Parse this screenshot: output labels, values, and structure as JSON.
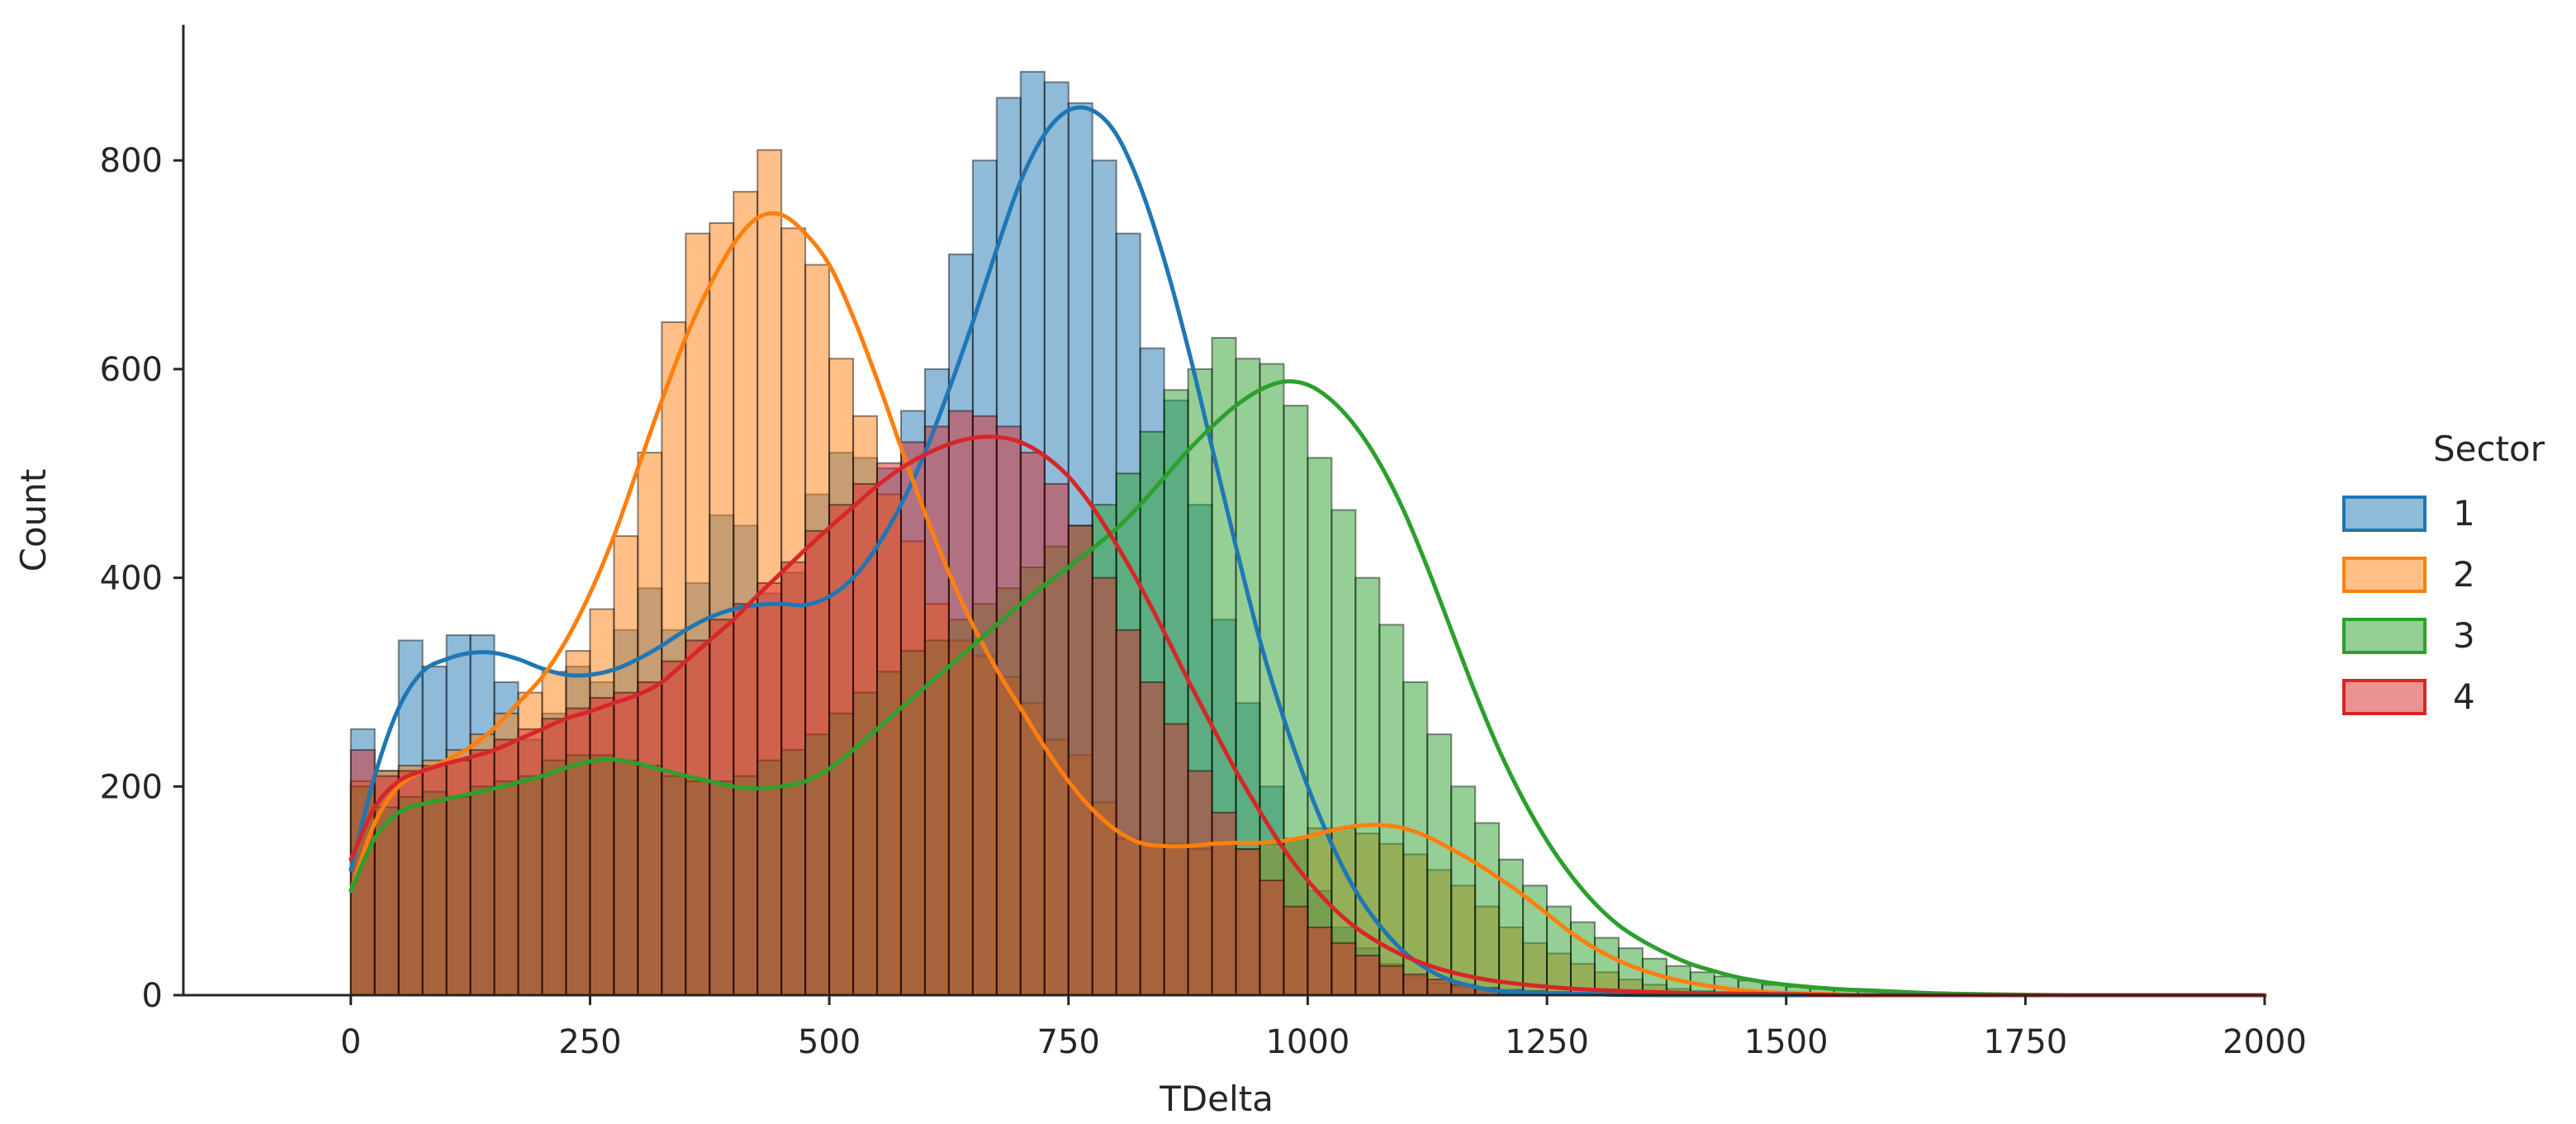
{
  "chart_data": {
    "type": "histogram",
    "xlabel": "TDelta",
    "ylabel": "Count",
    "xlim": [
      -175,
      2000
    ],
    "ylim": [
      0,
      930
    ],
    "x_ticks": [
      0,
      250,
      500,
      750,
      1000,
      1250,
      1500,
      1750,
      2000
    ],
    "y_ticks": [
      0,
      200,
      400,
      600,
      800
    ],
    "bin_width": 25,
    "bin_start": 0,
    "grid": false,
    "legend": {
      "title": "Sector",
      "placement": "right"
    },
    "series": [
      {
        "name": "1",
        "color": "#1f77b4",
        "counts": [
          255,
          215,
          340,
          315,
          345,
          345,
          300,
          245,
          270,
          315,
          300,
          350,
          390,
          350,
          395,
          460,
          450,
          385,
          405,
          480,
          520,
          515,
          505,
          560,
          600,
          710,
          800,
          860,
          885,
          875,
          855,
          800,
          730,
          620,
          570,
          470,
          360,
          280,
          200,
          150,
          100,
          65,
          45,
          30,
          18,
          12,
          8,
          6,
          4,
          3,
          2,
          2,
          2,
          1,
          1,
          1,
          1,
          0,
          0,
          0,
          0,
          0,
          0,
          0,
          0,
          0,
          0,
          0,
          0,
          0,
          0,
          0,
          0,
          0,
          0,
          0,
          0,
          0,
          0,
          0
        ],
        "kde": [
          [
            0,
            120
          ],
          [
            25,
            210
          ],
          [
            50,
            275
          ],
          [
            75,
            310
          ],
          [
            100,
            322
          ],
          [
            125,
            328
          ],
          [
            150,
            328
          ],
          [
            175,
            322
          ],
          [
            200,
            313
          ],
          [
            225,
            307
          ],
          [
            250,
            307
          ],
          [
            275,
            312
          ],
          [
            300,
            322
          ],
          [
            325,
            335
          ],
          [
            350,
            350
          ],
          [
            375,
            362
          ],
          [
            400,
            370
          ],
          [
            425,
            374
          ],
          [
            450,
            375
          ],
          [
            475,
            374
          ],
          [
            500,
            382
          ],
          [
            525,
            400
          ],
          [
            550,
            430
          ],
          [
            575,
            470
          ],
          [
            600,
            520
          ],
          [
            625,
            580
          ],
          [
            650,
            645
          ],
          [
            675,
            715
          ],
          [
            700,
            780
          ],
          [
            725,
            825
          ],
          [
            750,
            848
          ],
          [
            775,
            848
          ],
          [
            800,
            825
          ],
          [
            825,
            775
          ],
          [
            850,
            705
          ],
          [
            875,
            620
          ],
          [
            900,
            525
          ],
          [
            925,
            430
          ],
          [
            950,
            340
          ],
          [
            975,
            265
          ],
          [
            1000,
            200
          ],
          [
            1025,
            145
          ],
          [
            1050,
            100
          ],
          [
            1075,
            67
          ],
          [
            1100,
            42
          ],
          [
            1125,
            25
          ],
          [
            1150,
            14
          ],
          [
            1175,
            8
          ],
          [
            1200,
            4
          ],
          [
            1250,
            2
          ],
          [
            1300,
            1
          ],
          [
            1400,
            0
          ],
          [
            2000,
            0
          ]
        ]
      },
      {
        "name": "2",
        "color": "#ff7f0e",
        "counts": [
          205,
          215,
          220,
          225,
          235,
          250,
          270,
          290,
          310,
          330,
          370,
          440,
          520,
          645,
          730,
          740,
          770,
          810,
          735,
          700,
          610,
          555,
          480,
          435,
          375,
          340,
          325,
          305,
          280,
          245,
          230,
          185,
          150,
          145,
          145,
          140,
          145,
          140,
          145,
          150,
          160,
          160,
          155,
          145,
          135,
          120,
          105,
          85,
          65,
          50,
          40,
          30,
          22,
          15,
          10,
          6,
          4,
          3,
          2,
          1,
          1,
          0,
          0,
          0,
          0,
          0,
          0,
          0,
          0,
          0,
          0,
          0,
          0,
          0,
          0,
          0,
          0,
          0,
          0,
          0
        ],
        "kde": [
          [
            0,
            100
          ],
          [
            25,
            165
          ],
          [
            50,
            200
          ],
          [
            75,
            215
          ],
          [
            100,
            225
          ],
          [
            125,
            238
          ],
          [
            150,
            256
          ],
          [
            175,
            280
          ],
          [
            200,
            305
          ],
          [
            225,
            340
          ],
          [
            250,
            385
          ],
          [
            275,
            440
          ],
          [
            300,
            505
          ],
          [
            325,
            570
          ],
          [
            350,
            630
          ],
          [
            375,
            680
          ],
          [
            400,
            720
          ],
          [
            425,
            745
          ],
          [
            450,
            748
          ],
          [
            475,
            730
          ],
          [
            500,
            700
          ],
          [
            525,
            650
          ],
          [
            550,
            590
          ],
          [
            575,
            525
          ],
          [
            600,
            462
          ],
          [
            625,
            405
          ],
          [
            650,
            355
          ],
          [
            675,
            312
          ],
          [
            700,
            275
          ],
          [
            725,
            238
          ],
          [
            750,
            205
          ],
          [
            775,
            178
          ],
          [
            800,
            158
          ],
          [
            825,
            146
          ],
          [
            850,
            143
          ],
          [
            875,
            143
          ],
          [
            900,
            145
          ],
          [
            925,
            146
          ],
          [
            950,
            146
          ],
          [
            975,
            148
          ],
          [
            1000,
            152
          ],
          [
            1025,
            158
          ],
          [
            1050,
            162
          ],
          [
            1075,
            163
          ],
          [
            1100,
            160
          ],
          [
            1125,
            152
          ],
          [
            1150,
            140
          ],
          [
            1175,
            127
          ],
          [
            1200,
            112
          ],
          [
            1225,
            96
          ],
          [
            1250,
            78
          ],
          [
            1275,
            60
          ],
          [
            1300,
            45
          ],
          [
            1325,
            33
          ],
          [
            1350,
            24
          ],
          [
            1375,
            17
          ],
          [
            1400,
            12
          ],
          [
            1425,
            8
          ],
          [
            1450,
            5
          ],
          [
            1500,
            2
          ],
          [
            1550,
            1
          ],
          [
            1600,
            0
          ],
          [
            2000,
            0
          ]
        ]
      },
      {
        "name": "3",
        "color": "#2ca02c",
        "counts": [
          200,
          180,
          190,
          195,
          190,
          200,
          205,
          210,
          225,
          230,
          230,
          225,
          220,
          210,
          205,
          205,
          210,
          225,
          235,
          250,
          270,
          290,
          310,
          330,
          340,
          360,
          375,
          390,
          410,
          430,
          450,
          470,
          500,
          540,
          580,
          600,
          630,
          610,
          605,
          565,
          515,
          465,
          400,
          355,
          300,
          250,
          200,
          165,
          130,
          105,
          85,
          70,
          55,
          45,
          35,
          28,
          22,
          18,
          14,
          10,
          8,
          6,
          5,
          4,
          3,
          3,
          2,
          2,
          1,
          1,
          1,
          1,
          0,
          0,
          0,
          0,
          0,
          0,
          0,
          0
        ],
        "kde": [
          [
            0,
            100
          ],
          [
            25,
            150
          ],
          [
            50,
            175
          ],
          [
            75,
            183
          ],
          [
            100,
            188
          ],
          [
            125,
            193
          ],
          [
            150,
            198
          ],
          [
            175,
            204
          ],
          [
            200,
            210
          ],
          [
            225,
            218
          ],
          [
            250,
            224
          ],
          [
            275,
            226
          ],
          [
            300,
            222
          ],
          [
            325,
            216
          ],
          [
            350,
            210
          ],
          [
            375,
            205
          ],
          [
            400,
            200
          ],
          [
            425,
            198
          ],
          [
            450,
            200
          ],
          [
            475,
            205
          ],
          [
            500,
            217
          ],
          [
            525,
            235
          ],
          [
            550,
            255
          ],
          [
            575,
            275
          ],
          [
            600,
            295
          ],
          [
            625,
            315
          ],
          [
            650,
            335
          ],
          [
            675,
            355
          ],
          [
            700,
            375
          ],
          [
            725,
            393
          ],
          [
            750,
            410
          ],
          [
            775,
            428
          ],
          [
            800,
            447
          ],
          [
            825,
            470
          ],
          [
            850,
            496
          ],
          [
            875,
            522
          ],
          [
            900,
            545
          ],
          [
            925,
            565
          ],
          [
            950,
            580
          ],
          [
            975,
            588
          ],
          [
            1000,
            585
          ],
          [
            1025,
            570
          ],
          [
            1050,
            545
          ],
          [
            1075,
            510
          ],
          [
            1100,
            465
          ],
          [
            1125,
            410
          ],
          [
            1150,
            350
          ],
          [
            1175,
            290
          ],
          [
            1200,
            235
          ],
          [
            1225,
            188
          ],
          [
            1250,
            148
          ],
          [
            1275,
            115
          ],
          [
            1300,
            88
          ],
          [
            1325,
            67
          ],
          [
            1350,
            52
          ],
          [
            1375,
            40
          ],
          [
            1400,
            30
          ],
          [
            1425,
            23
          ],
          [
            1450,
            17
          ],
          [
            1475,
            13
          ],
          [
            1500,
            10
          ],
          [
            1550,
            6
          ],
          [
            1600,
            4
          ],
          [
            1650,
            2
          ],
          [
            1700,
            1
          ],
          [
            1800,
            0
          ],
          [
            2000,
            0
          ]
        ]
      },
      {
        "name": "4",
        "color": "#d62728",
        "counts": [
          235,
          210,
          215,
          220,
          225,
          235,
          245,
          255,
          265,
          275,
          285,
          290,
          300,
          320,
          340,
          360,
          375,
          395,
          415,
          445,
          470,
          490,
          510,
          530,
          545,
          560,
          555,
          545,
          520,
          490,
          450,
          400,
          350,
          300,
          260,
          215,
          175,
          140,
          110,
          85,
          65,
          50,
          38,
          28,
          20,
          15,
          10,
          7,
          5,
          4,
          3,
          2,
          2,
          1,
          1,
          1,
          0,
          0,
          0,
          0,
          0,
          0,
          0,
          0,
          0,
          0,
          0,
          0,
          0,
          0,
          0,
          0,
          0,
          0,
          0,
          0,
          0,
          0,
          0,
          0
        ],
        "kde": [
          [
            0,
            130
          ],
          [
            25,
            180
          ],
          [
            50,
            205
          ],
          [
            75,
            215
          ],
          [
            100,
            222
          ],
          [
            125,
            228
          ],
          [
            150,
            235
          ],
          [
            175,
            245
          ],
          [
            200,
            255
          ],
          [
            225,
            265
          ],
          [
            250,
            272
          ],
          [
            275,
            280
          ],
          [
            300,
            288
          ],
          [
            325,
            300
          ],
          [
            350,
            320
          ],
          [
            375,
            340
          ],
          [
            400,
            360
          ],
          [
            425,
            383
          ],
          [
            450,
            405
          ],
          [
            475,
            427
          ],
          [
            500,
            448
          ],
          [
            525,
            468
          ],
          [
            550,
            488
          ],
          [
            575,
            505
          ],
          [
            600,
            518
          ],
          [
            625,
            528
          ],
          [
            650,
            534
          ],
          [
            675,
            535
          ],
          [
            700,
            530
          ],
          [
            725,
            517
          ],
          [
            750,
            497
          ],
          [
            775,
            468
          ],
          [
            800,
            432
          ],
          [
            825,
            392
          ],
          [
            850,
            348
          ],
          [
            875,
            302
          ],
          [
            900,
            258
          ],
          [
            925,
            215
          ],
          [
            950,
            176
          ],
          [
            975,
            140
          ],
          [
            1000,
            110
          ],
          [
            1025,
            85
          ],
          [
            1050,
            65
          ],
          [
            1075,
            50
          ],
          [
            1100,
            38
          ],
          [
            1125,
            29
          ],
          [
            1150,
            22
          ],
          [
            1175,
            17
          ],
          [
            1200,
            13
          ],
          [
            1250,
            8
          ],
          [
            1300,
            5
          ],
          [
            1400,
            2
          ],
          [
            1500,
            1
          ],
          [
            1600,
            0
          ],
          [
            2000,
            0
          ]
        ]
      }
    ]
  }
}
